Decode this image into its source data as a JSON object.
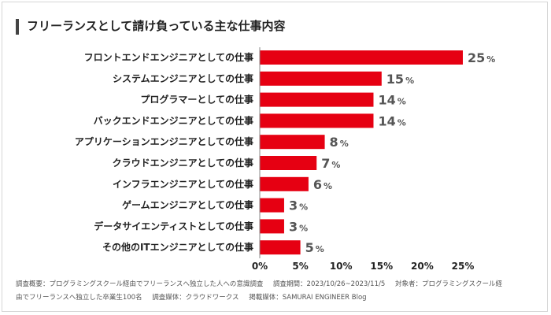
{
  "title": "フリーランスとして請け負っている主な仕事内容",
  "chart_data": {
    "type": "bar",
    "orientation": "horizontal",
    "categories": [
      "フロントエンドエンジニアとしての仕事",
      "システムエンジニアとしての仕事",
      "プログラマーとしての仕事",
      "バックエンドエンジニアとしての仕事",
      "アプリケーションエンジニアとしての仕事",
      "クラウドエンジニアとしての仕事",
      "インフラエンジニアとしての仕事",
      "ゲームエンジニアとしての仕事",
      "データサイエンティストとしての仕事",
      "その他のITエンジニアとしての仕事"
    ],
    "values": [
      25,
      15,
      14,
      14,
      8,
      7,
      6,
      3,
      3,
      5
    ],
    "value_unit": "%",
    "xlim": [
      0,
      25
    ],
    "xticks": [
      "0%",
      "5%",
      "10%",
      "15%",
      "20%",
      "25%"
    ],
    "grid": false,
    "bar_color": "#e60012"
  },
  "footer": {
    "line1": [
      "調査概要：プログラミングスクール経由でフリーランスへ独立した人への意識調査",
      "調査期間：2023/10/26~2023/11/5",
      "対象者：プログラミングスクール経"
    ],
    "line2": [
      "由でフリーランスへ独立した卒業生100名",
      "調査媒体：クラウドワークス",
      "掲載媒体：SAMURAI ENGINEER Blog"
    ]
  }
}
